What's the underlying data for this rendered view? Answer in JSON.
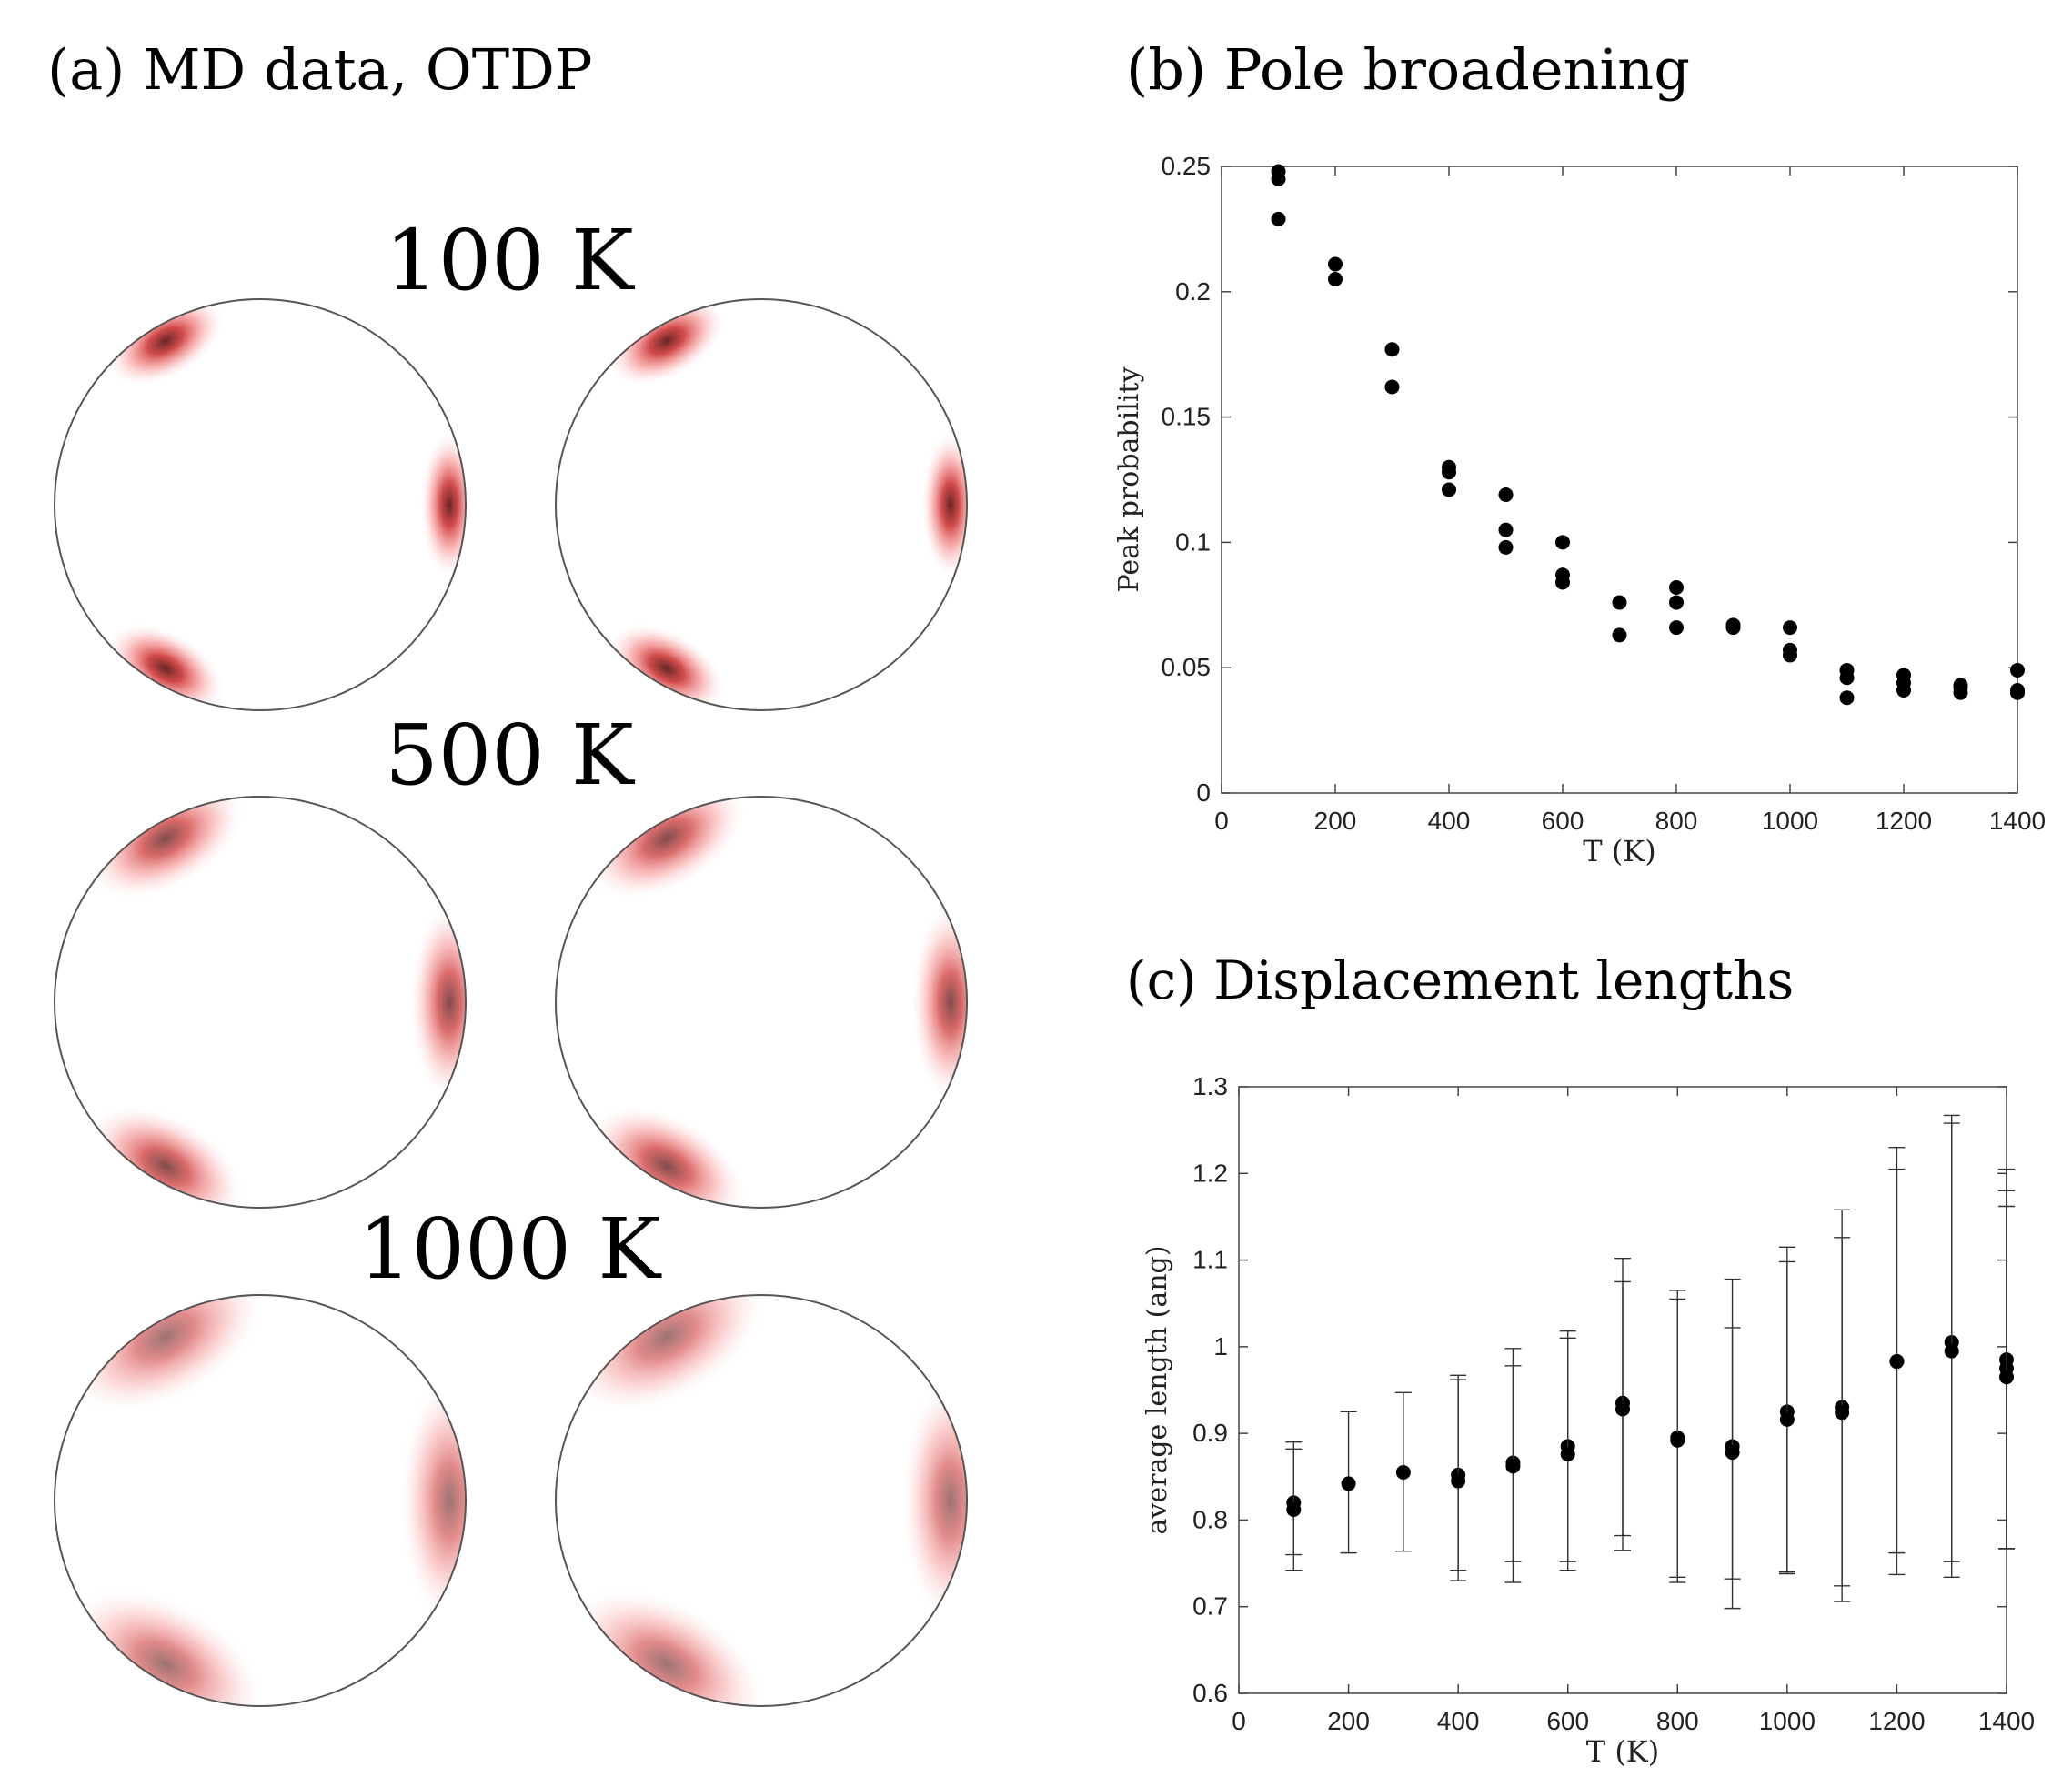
{
  "panel_a": {
    "title": "(a) MD data, OTDP",
    "rows": [
      {
        "label": "100 K",
        "intensity": 0.85
      },
      {
        "label": "500 K",
        "intensity": 0.7
      },
      {
        "label": "1000 K",
        "intensity": 0.55
      }
    ],
    "colors": {
      "high": "#4a0000",
      "mid": "#e83c3c",
      "low": "#fde4e4"
    }
  },
  "chart_data": [
    {
      "panel": "(b) Pole broadening",
      "type": "scatter",
      "title": "(b) Pole broadening",
      "xlabel": "T (K)",
      "ylabel": "Peak probability",
      "xlim": [
        0,
        1400
      ],
      "ylim": [
        0,
        0.25
      ],
      "xticks": [
        0,
        200,
        400,
        600,
        800,
        1000,
        1200,
        1400
      ],
      "yticks": [
        0,
        0.05,
        0.1,
        0.15,
        0.2,
        0.25
      ],
      "ytick_labels": [
        "0",
        "0.05",
        "0.1",
        "0.15",
        "0.2",
        "0.25"
      ],
      "points": [
        [
          100,
          0.229
        ],
        [
          100,
          0.245
        ],
        [
          100,
          0.248
        ],
        [
          200,
          0.205
        ],
        [
          200,
          0.211
        ],
        [
          300,
          0.177
        ],
        [
          300,
          0.162
        ],
        [
          400,
          0.13
        ],
        [
          400,
          0.128
        ],
        [
          400,
          0.121
        ],
        [
          500,
          0.119
        ],
        [
          500,
          0.105
        ],
        [
          500,
          0.098
        ],
        [
          600,
          0.1
        ],
        [
          600,
          0.087
        ],
        [
          600,
          0.084
        ],
        [
          700,
          0.076
        ],
        [
          700,
          0.063
        ],
        [
          800,
          0.082
        ],
        [
          800,
          0.076
        ],
        [
          800,
          0.066
        ],
        [
          900,
          0.067
        ],
        [
          900,
          0.066
        ],
        [
          1000,
          0.066
        ],
        [
          1000,
          0.057
        ],
        [
          1000,
          0.055
        ],
        [
          1100,
          0.049
        ],
        [
          1100,
          0.046
        ],
        [
          1100,
          0.038
        ],
        [
          1200,
          0.047
        ],
        [
          1200,
          0.044
        ],
        [
          1200,
          0.041
        ],
        [
          1300,
          0.043
        ],
        [
          1300,
          0.042
        ],
        [
          1300,
          0.04
        ],
        [
          1400,
          0.049
        ],
        [
          1400,
          0.041
        ],
        [
          1400,
          0.04
        ]
      ]
    },
    {
      "panel": "(c) Displacement lengths",
      "type": "scatter",
      "title": "(c) Displacement lengths",
      "xlabel": "T (K)",
      "ylabel": "average length (ang)",
      "xlim": [
        0,
        1400
      ],
      "ylim": [
        0.6,
        1.3
      ],
      "xticks": [
        0,
        200,
        400,
        600,
        800,
        1000,
        1200,
        1400
      ],
      "yticks": [
        0.6,
        0.7,
        0.8,
        0.9,
        1.0,
        1.1,
        1.2,
        1.3
      ],
      "ytick_labels": [
        "0.6",
        "0.7",
        "0.8",
        "0.9",
        "1",
        "1.1",
        "1.2",
        "1.3"
      ],
      "points": [
        {
          "x": 100,
          "y": 0.82,
          "lo": 0.742,
          "hi": 0.89
        },
        {
          "x": 100,
          "y": 0.812,
          "lo": 0.76,
          "hi": 0.882
        },
        {
          "x": 200,
          "y": 0.842,
          "lo": 0.762,
          "hi": 0.925
        },
        {
          "x": 300,
          "y": 0.855,
          "lo": 0.764,
          "hi": 0.947
        },
        {
          "x": 400,
          "y": 0.852,
          "lo": 0.73,
          "hi": 0.967
        },
        {
          "x": 400,
          "y": 0.845,
          "lo": 0.742,
          "hi": 0.962
        },
        {
          "x": 500,
          "y": 0.866,
          "lo": 0.728,
          "hi": 0.998
        },
        {
          "x": 500,
          "y": 0.862,
          "lo": 0.752,
          "hi": 0.978
        },
        {
          "x": 600,
          "y": 0.885,
          "lo": 0.742,
          "hi": 1.018
        },
        {
          "x": 600,
          "y": 0.876,
          "lo": 0.752,
          "hi": 1.01
        },
        {
          "x": 700,
          "y": 0.935,
          "lo": 0.765,
          "hi": 1.102
        },
        {
          "x": 700,
          "y": 0.928,
          "lo": 0.782,
          "hi": 1.075
        },
        {
          "x": 800,
          "y": 0.895,
          "lo": 0.728,
          "hi": 1.065
        },
        {
          "x": 800,
          "y": 0.892,
          "lo": 0.734,
          "hi": 1.055
        },
        {
          "x": 900,
          "y": 0.885,
          "lo": 0.698,
          "hi": 1.078
        },
        {
          "x": 900,
          "y": 0.878,
          "lo": 0.732,
          "hi": 1.022
        },
        {
          "x": 1000,
          "y": 0.925,
          "lo": 0.738,
          "hi": 1.115
        },
        {
          "x": 1000,
          "y": 0.916,
          "lo": 0.74,
          "hi": 1.098
        },
        {
          "x": 1100,
          "y": 0.93,
          "lo": 0.706,
          "hi": 1.158
        },
        {
          "x": 1100,
          "y": 0.924,
          "lo": 0.724,
          "hi": 1.126
        },
        {
          "x": 1200,
          "y": 0.983,
          "lo": 0.737,
          "hi": 1.23
        },
        {
          "x": 1200,
          "y": 0.983,
          "lo": 0.762,
          "hi": 1.205
        },
        {
          "x": 1300,
          "y": 1.005,
          "lo": 0.734,
          "hi": 1.267
        },
        {
          "x": 1300,
          "y": 0.995,
          "lo": 0.752,
          "hi": 1.258
        },
        {
          "x": 1400,
          "y": 0.985,
          "lo": 0.767,
          "hi": 1.205
        },
        {
          "x": 1400,
          "y": 0.975,
          "lo": 0.767,
          "hi": 1.18
        },
        {
          "x": 1400,
          "y": 0.965,
          "lo": 0.767,
          "hi": 1.162
        }
      ]
    }
  ]
}
